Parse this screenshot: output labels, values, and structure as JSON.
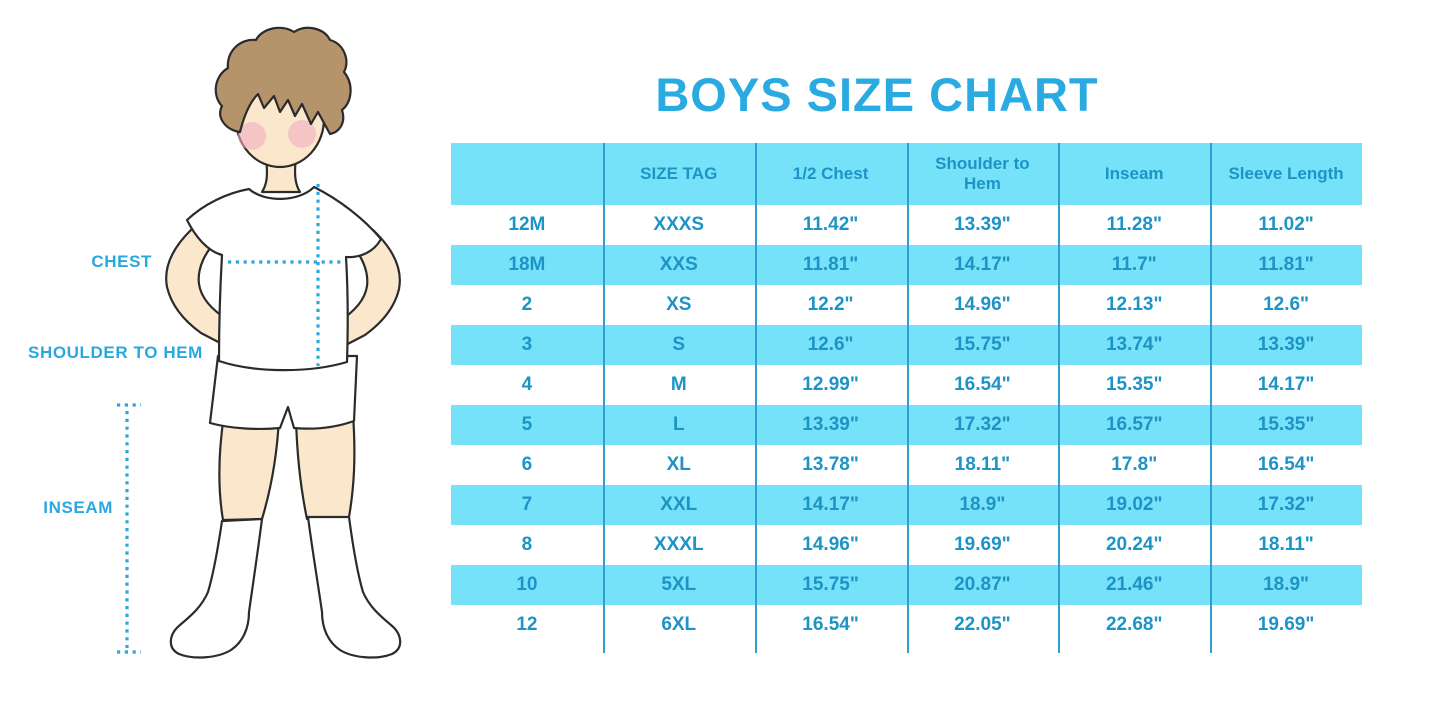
{
  "title": "BOYS SIZE CHART",
  "figure": {
    "labels": {
      "chest": "CHEST",
      "shoulder_to_hem": "SHOULDER TO HEM",
      "inseam": "INSEAM"
    }
  },
  "chart_data": {
    "type": "table",
    "title": "BOYS SIZE CHART",
    "columns": [
      "",
      "SIZE TAG",
      "1/2 Chest",
      "Shoulder to Hem",
      "Inseam",
      "Sleeve Length"
    ],
    "rows": [
      [
        "12M",
        "XXXS",
        "11.42\"",
        "13.39\"",
        "11.28\"",
        "11.02\""
      ],
      [
        "18M",
        "XXS",
        "11.81\"",
        "14.17\"",
        "11.7\"",
        "11.81\""
      ],
      [
        "2",
        "XS",
        "12.2\"",
        "14.96\"",
        "12.13\"",
        "12.6\""
      ],
      [
        "3",
        "S",
        "12.6\"",
        "15.75\"",
        "13.74\"",
        "13.39\""
      ],
      [
        "4",
        "M",
        "12.99\"",
        "16.54\"",
        "15.35\"",
        "14.17\""
      ],
      [
        "5",
        "L",
        "13.39\"",
        "17.32\"",
        "16.57\"",
        "15.35\""
      ],
      [
        "6",
        "XL",
        "13.78\"",
        "18.11\"",
        "17.8\"",
        "16.54\""
      ],
      [
        "7",
        "XXL",
        "14.17\"",
        "18.9\"",
        "19.02\"",
        "17.32\""
      ],
      [
        "8",
        "XXXL",
        "14.96\"",
        "19.69\"",
        "20.24\"",
        "18.11\""
      ],
      [
        "10",
        "5XL",
        "15.75\"",
        "20.87\"",
        "21.46\"",
        "18.9\""
      ],
      [
        "12",
        "6XL",
        "16.54\"",
        "22.05\"",
        "22.68\"",
        "19.69\""
      ]
    ],
    "layout": {
      "header_fill": "striped",
      "row_striping": [
        "white",
        "cyan"
      ],
      "grid": "vertical-only"
    }
  },
  "colors": {
    "title_blue": "#29ABE2",
    "label_blue": "#29A8DF",
    "table_text": "#1D93C6",
    "stripe_cyan": "#76E2F9",
    "column_divider": "#2E9FD0",
    "hair_brown": "#B5946B",
    "skin": "#FBE8CC",
    "blush_pink": "#F2AEC0",
    "outline": "#2B2B2B"
  }
}
